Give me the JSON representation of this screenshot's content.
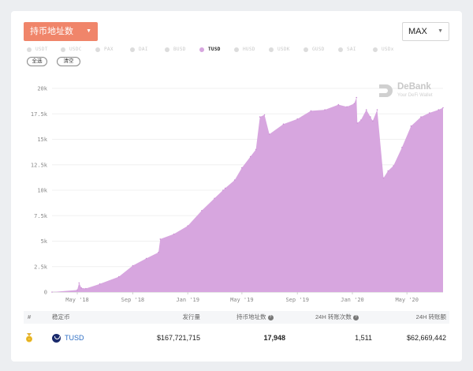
{
  "controls": {
    "metric_label": "持币地址数",
    "range_label": "MAX",
    "select_all": "全选",
    "clear": "清空"
  },
  "coins": [
    {
      "label": "USDT",
      "active": false
    },
    {
      "label": "USDC",
      "active": false
    },
    {
      "label": "PAX",
      "active": false
    },
    {
      "label": "DAI",
      "active": false
    },
    {
      "label": "BUSD",
      "active": false
    },
    {
      "label": "TUSD",
      "active": true
    },
    {
      "label": "HUSD",
      "active": false
    },
    {
      "label": "USDK",
      "active": false
    },
    {
      "label": "GUSD",
      "active": false
    },
    {
      "label": "SAI",
      "active": false
    },
    {
      "label": "USDx",
      "active": false
    }
  ],
  "watermark": {
    "brand": "DeBank",
    "tagline": "Your DeFi Wallet"
  },
  "colors": {
    "accent": "#f0856a",
    "series": "#d7a6df"
  },
  "chart_data": {
    "type": "area",
    "series": [
      {
        "name": "TUSD",
        "x": [
          "2018-03-06",
          "2018-05-01",
          "2018-05-05",
          "2018-05-10",
          "2018-05-20",
          "2018-06-20",
          "2018-08-01",
          "2018-09-01",
          "2018-10-01",
          "2018-10-28",
          "2018-11-01",
          "2018-12-01",
          "2019-01-01",
          "2019-02-01",
          "2019-03-01",
          "2019-03-20",
          "2019-03-25",
          "2019-04-15",
          "2019-05-01",
          "2019-05-20",
          "2019-06-01",
          "2019-06-10",
          "2019-06-20",
          "2019-07-01",
          "2019-08-01",
          "2019-09-01",
          "2019-10-01",
          "2019-11-01",
          "2019-12-01",
          "2019-12-20",
          "2020-01-05",
          "2020-01-10",
          "2020-01-12",
          "2020-01-20",
          "2020-02-01",
          "2020-02-10",
          "2020-02-15",
          "2020-02-25",
          "2020-03-10",
          "2020-03-20",
          "2020-04-01",
          "2020-04-20",
          "2020-05-10",
          "2020-06-01",
          "2020-06-20",
          "2020-07-10",
          "2020-07-20"
        ],
        "y": [
          0,
          200,
          900,
          400,
          350,
          800,
          1500,
          2600,
          3300,
          3900,
          5200,
          5700,
          6500,
          8000,
          9200,
          10000,
          10200,
          11000,
          12200,
          13300,
          14000,
          17200,
          17400,
          15500,
          16500,
          17000,
          17800,
          17900,
          18400,
          18200,
          18500,
          19100,
          16600,
          16900,
          17900,
          17200,
          16800,
          17900,
          11200,
          11900,
          12400,
          14200,
          16300,
          17200,
          17600,
          17900,
          18100
        ]
      }
    ],
    "yticks": [
      "0",
      "2.5k",
      "5k",
      "7.5k",
      "10k",
      "12.5k",
      "15k",
      "17.5k",
      "20k"
    ],
    "ylim": [
      0,
      20000
    ],
    "xticks": [
      {
        "date": "2018-05-01",
        "label": "May '18"
      },
      {
        "date": "2018-09-01",
        "label": "Sep '18"
      },
      {
        "date": "2019-01-01",
        "label": "Jan '19"
      },
      {
        "date": "2019-05-01",
        "label": "May '19"
      },
      {
        "date": "2019-09-01",
        "label": "Sep '19"
      },
      {
        "date": "2020-01-01",
        "label": "Jan '20"
      },
      {
        "date": "2020-05-01",
        "label": "May '20"
      }
    ],
    "xlim": [
      "2018-03-06",
      "2020-07-20"
    ],
    "grid": true
  },
  "table": {
    "headers": [
      "#",
      "稳定币",
      "发行量",
      "持币地址数",
      "24H 转账次数",
      "24H 转账额"
    ],
    "row": {
      "coin": "TUSD",
      "supply": "$167,721,715",
      "holders": "17,948",
      "transfers": "1,511",
      "volume": "$62,669,442"
    }
  }
}
